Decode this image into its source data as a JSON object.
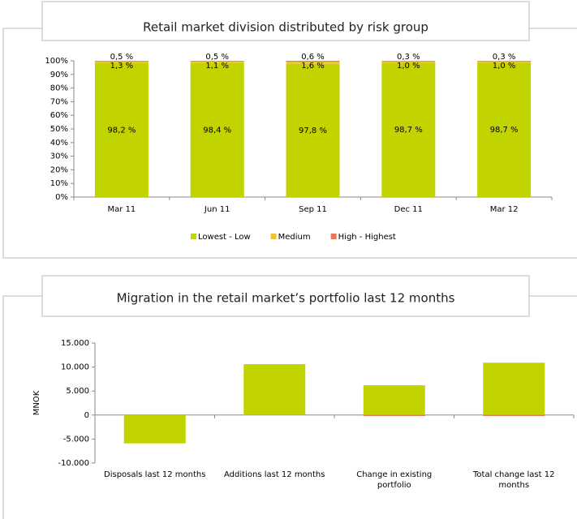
{
  "chart_data": [
    {
      "type": "bar",
      "stacked": true,
      "title": "Retail market division distributed by risk group",
      "categories": [
        "Mar 11",
        "Jun 11",
        "Sep 11",
        "Dec 11",
        "Mar 12"
      ],
      "series": [
        {
          "name": "Lowest - Low",
          "color": "#c2d400",
          "values": [
            98.2,
            98.4,
            97.8,
            98.7,
            98.7
          ],
          "value_labels": [
            "98,2 %",
            "98,4 %",
            "97,8 %",
            "98,7 %",
            "98,7 %"
          ]
        },
        {
          "name": "Medium",
          "color": "#f2c232",
          "values": [
            1.3,
            1.1,
            1.6,
            1.0,
            1.0
          ],
          "value_labels": [
            "1,3 %",
            "1,1 %",
            "1,6 %",
            "1,0 %",
            "1,0 %"
          ]
        },
        {
          "name": "High - Highest",
          "color": "#e2775a",
          "values": [
            0.5,
            0.5,
            0.6,
            0.3,
            0.3
          ],
          "value_labels": [
            "0,5 %",
            "0,5 %",
            "0,6 %",
            "0,3 %",
            "0,3 %"
          ]
        }
      ],
      "ylim": [
        0,
        100
      ],
      "yticks": [
        {
          "value": 0,
          "label": "0%"
        },
        {
          "value": 10,
          "label": "10%"
        },
        {
          "value": 20,
          "label": "20%"
        },
        {
          "value": 30,
          "label": "30%"
        },
        {
          "value": 40,
          "label": "40%"
        },
        {
          "value": 50,
          "label": "50%"
        },
        {
          "value": 60,
          "label": "60%"
        },
        {
          "value": 70,
          "label": "70%"
        },
        {
          "value": 80,
          "label": "80%"
        },
        {
          "value": 90,
          "label": "90%"
        },
        {
          "value": 100,
          "label": "100%"
        }
      ],
      "legend": "bottom"
    },
    {
      "type": "bar",
      "stacked": true,
      "title": "Migration in the retail market’s portfolio last 12 months",
      "ylabel": "MNOK",
      "categories": [
        "Disposals last 12 months",
        "Additions last 12 months",
        "Change in existing portfolio",
        "Total change last 12 months"
      ],
      "series": [
        {
          "color": "#c2d400",
          "values": [
            -5900,
            10600,
            6200,
            10900
          ]
        },
        {
          "color": "#e2775a",
          "values": [
            0,
            0,
            -200,
            -200
          ]
        }
      ],
      "ylim": [
        -10000,
        15000
      ],
      "yticks": [
        {
          "value": -10000,
          "label": "-10.000"
        },
        {
          "value": -5000,
          "label": "-5.000"
        },
        {
          "value": 0,
          "label": "0"
        },
        {
          "value": 5000,
          "label": "5.000"
        },
        {
          "value": 10000,
          "label": "10.000"
        },
        {
          "value": 15000,
          "label": "15.000"
        }
      ]
    }
  ]
}
